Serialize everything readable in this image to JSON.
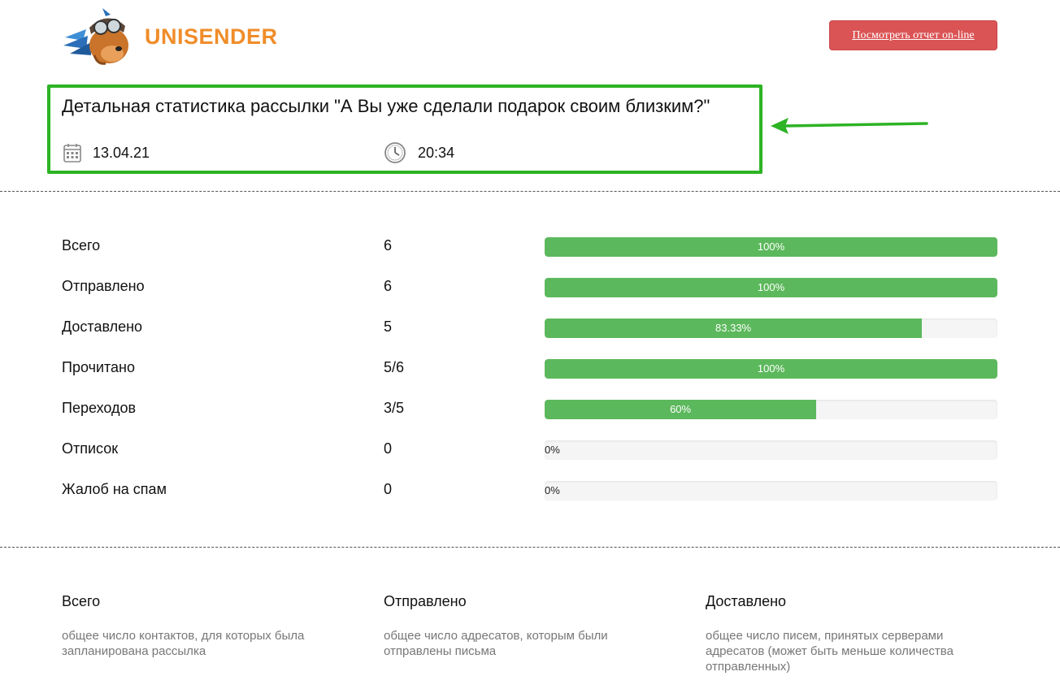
{
  "header": {
    "brand": "UNISENDER",
    "report_button_label": "Посмотреть отчет on-line"
  },
  "title_block": {
    "title": "Детальная статистика рассылки \"А Вы уже сделали подарок своим близким?\"",
    "date": "13.04.21",
    "time": "20:34"
  },
  "colors": {
    "accent_green": "#5cb85c",
    "highlight_green": "#2db324",
    "button_red": "#db5455",
    "brand_orange": "#f08d2a"
  },
  "stats": [
    {
      "label": "Всего",
      "value": "6",
      "percent": 100,
      "percent_label": "100%"
    },
    {
      "label": "Отправлено",
      "value": "6",
      "percent": 100,
      "percent_label": "100%"
    },
    {
      "label": "Доставлено",
      "value": "5",
      "percent": 83.33,
      "percent_label": "83.33%"
    },
    {
      "label": "Прочитано",
      "value": "5/6",
      "percent": 100,
      "percent_label": "100%"
    },
    {
      "label": "Переходов",
      "value": "3/5",
      "percent": 60,
      "percent_label": "60%"
    },
    {
      "label": "Отписок",
      "value": "0",
      "percent": 0,
      "percent_label": "0%"
    },
    {
      "label": "Жалоб на спам",
      "value": "0",
      "percent": 0,
      "percent_label": "0%"
    }
  ],
  "legend": [
    {
      "title": "Всего",
      "description": "общее число контактов, для которых была запланирована рассылка"
    },
    {
      "title": "Отправлено",
      "description": "общее число адресатов, которым были отправлены письма"
    },
    {
      "title": "Доставлено",
      "description": "общее число писем, принятых серверами адресатов (может быть меньше количества отправленных)"
    }
  ]
}
